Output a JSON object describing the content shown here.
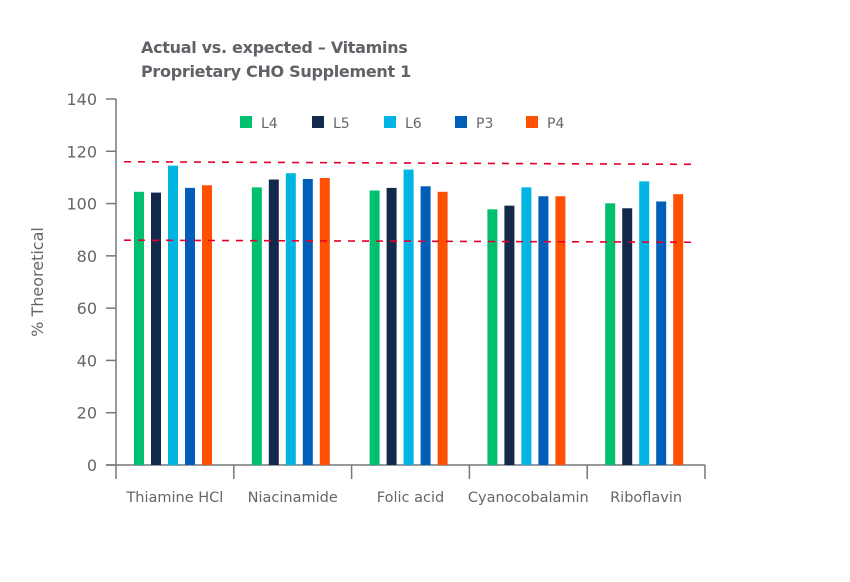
{
  "chart_data": {
    "type": "bar",
    "title": "Actual vs. expected – Vitamins",
    "subtitle": "Proprietary CHO Supplement 1",
    "xlabel": "",
    "ylabel": "% Theoretical",
    "ylim": [
      0,
      140
    ],
    "yticks": [
      0,
      20,
      40,
      60,
      80,
      100,
      120,
      140
    ],
    "grid": false,
    "legend_position": "top",
    "categories": [
      "Thiamine HCl",
      "Niacinamide",
      "Folic acid",
      "Cyanocobalamin",
      "Riboflavin"
    ],
    "series": [
      {
        "name": "L4",
        "color": "#00bf6f",
        "values": [
          104.5,
          106.2,
          105.0,
          97.8,
          100.1
        ]
      },
      {
        "name": "L5",
        "color": "#13294b",
        "values": [
          104.2,
          109.2,
          106.0,
          99.2,
          98.2
        ]
      },
      {
        "name": "L6",
        "color": "#00b5e2",
        "values": [
          114.5,
          111.6,
          113.0,
          106.2,
          108.5
        ]
      },
      {
        "name": "P3",
        "color": "#005eb8",
        "values": [
          106.0,
          109.4,
          106.6,
          102.8,
          100.8
        ]
      },
      {
        "name": "P4",
        "color": "#fe5000",
        "values": [
          107.0,
          109.8,
          104.5,
          102.8,
          103.6
        ]
      }
    ],
    "reference_lines": [
      {
        "style": "dashed",
        "color": "#e4002b",
        "y_start": 116,
        "y_end": 115
      },
      {
        "style": "dashed",
        "color": "#e4002b",
        "y_start": 86,
        "y_end": 85.2
      }
    ]
  }
}
